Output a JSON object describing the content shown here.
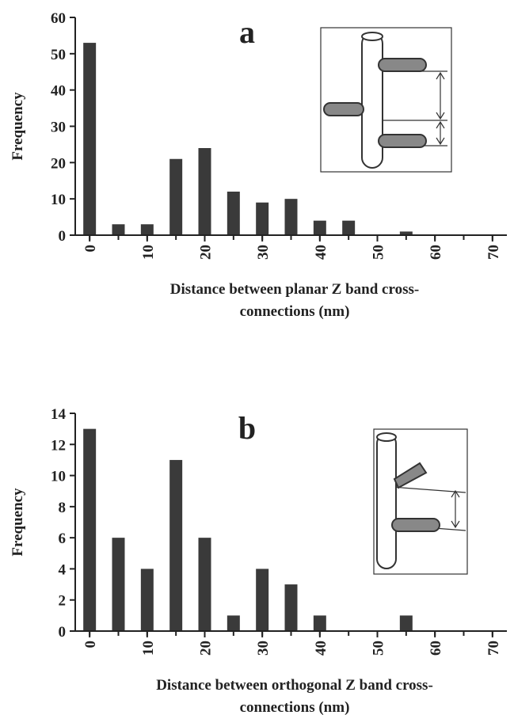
{
  "chart_data": [
    {
      "type": "bar",
      "label": "a",
      "ylabel": "Frequency",
      "xlabel": [
        "Distance between planar Z band cross-",
        "connections (nm)"
      ],
      "x": [
        0,
        5,
        10,
        15,
        20,
        25,
        30,
        35,
        40,
        45,
        50,
        55,
        60,
        65,
        70
      ],
      "values": [
        53,
        3,
        3,
        21,
        24,
        12,
        9,
        10,
        4,
        4,
        0,
        1,
        0,
        0,
        0
      ],
      "color": "#3a3a3a",
      "xlim": [
        -2.5,
        72.5
      ],
      "xticks": [
        0,
        10,
        20,
        30,
        40,
        50,
        60,
        70
      ],
      "ylim": [
        0,
        60
      ],
      "yticks": [
        0,
        10,
        20,
        30,
        40,
        50,
        60
      ]
    },
    {
      "type": "bar",
      "label": "b",
      "ylabel": "Frequency",
      "xlabel": [
        "Distance between orthogonal Z band cross-",
        "connections (nm)"
      ],
      "x": [
        0,
        5,
        10,
        15,
        20,
        25,
        30,
        35,
        40,
        45,
        50,
        55,
        60,
        65,
        70
      ],
      "values": [
        13,
        6,
        4,
        11,
        6,
        1,
        4,
        3,
        1,
        0,
        0,
        1,
        0,
        0,
        0
      ],
      "color": "#3a3a3a",
      "xlim": [
        -2.5,
        72.5
      ],
      "xticks": [
        0,
        10,
        20,
        30,
        40,
        50,
        60,
        70
      ],
      "ylim": [
        0,
        14
      ],
      "yticks": [
        0,
        2,
        4,
        6,
        8,
        10,
        12,
        14
      ]
    }
  ]
}
